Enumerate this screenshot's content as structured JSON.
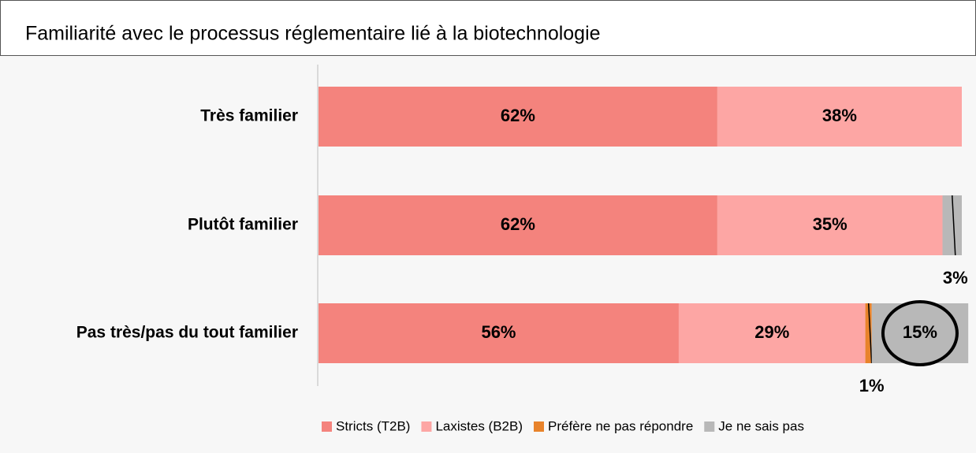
{
  "chart_data": {
    "type": "stacked_barh",
    "title": "Familiarité avec le processus réglementaire lié à la biotechnologie",
    "categories": [
      "Très familier",
      "Plutôt familier",
      "Pas très/pas du tout familier"
    ],
    "xlim": [
      0,
      100
    ],
    "legend": "bottom",
    "series": [
      {
        "name": "Stricts (T2B)",
        "color": "#f4837d",
        "values": [
          62,
          62,
          56
        ],
        "value_labels": [
          "62%",
          "62%",
          "56%"
        ]
      },
      {
        "name": "Laxistes (B2B)",
        "color": "#fda6a4",
        "values": [
          38,
          35,
          29
        ],
        "value_labels": [
          "38%",
          "35%",
          "29%"
        ]
      },
      {
        "name": "Préfère ne pas répondre",
        "color": "#e8832b",
        "values": [
          0,
          0,
          1
        ],
        "value_labels": [
          null,
          null,
          "1%"
        ]
      },
      {
        "name": "Je ne sais pas",
        "color": "#b8b8b8",
        "values": [
          0,
          3,
          15
        ],
        "value_labels": [
          null,
          "3%",
          "15%"
        ]
      }
    ]
  }
}
